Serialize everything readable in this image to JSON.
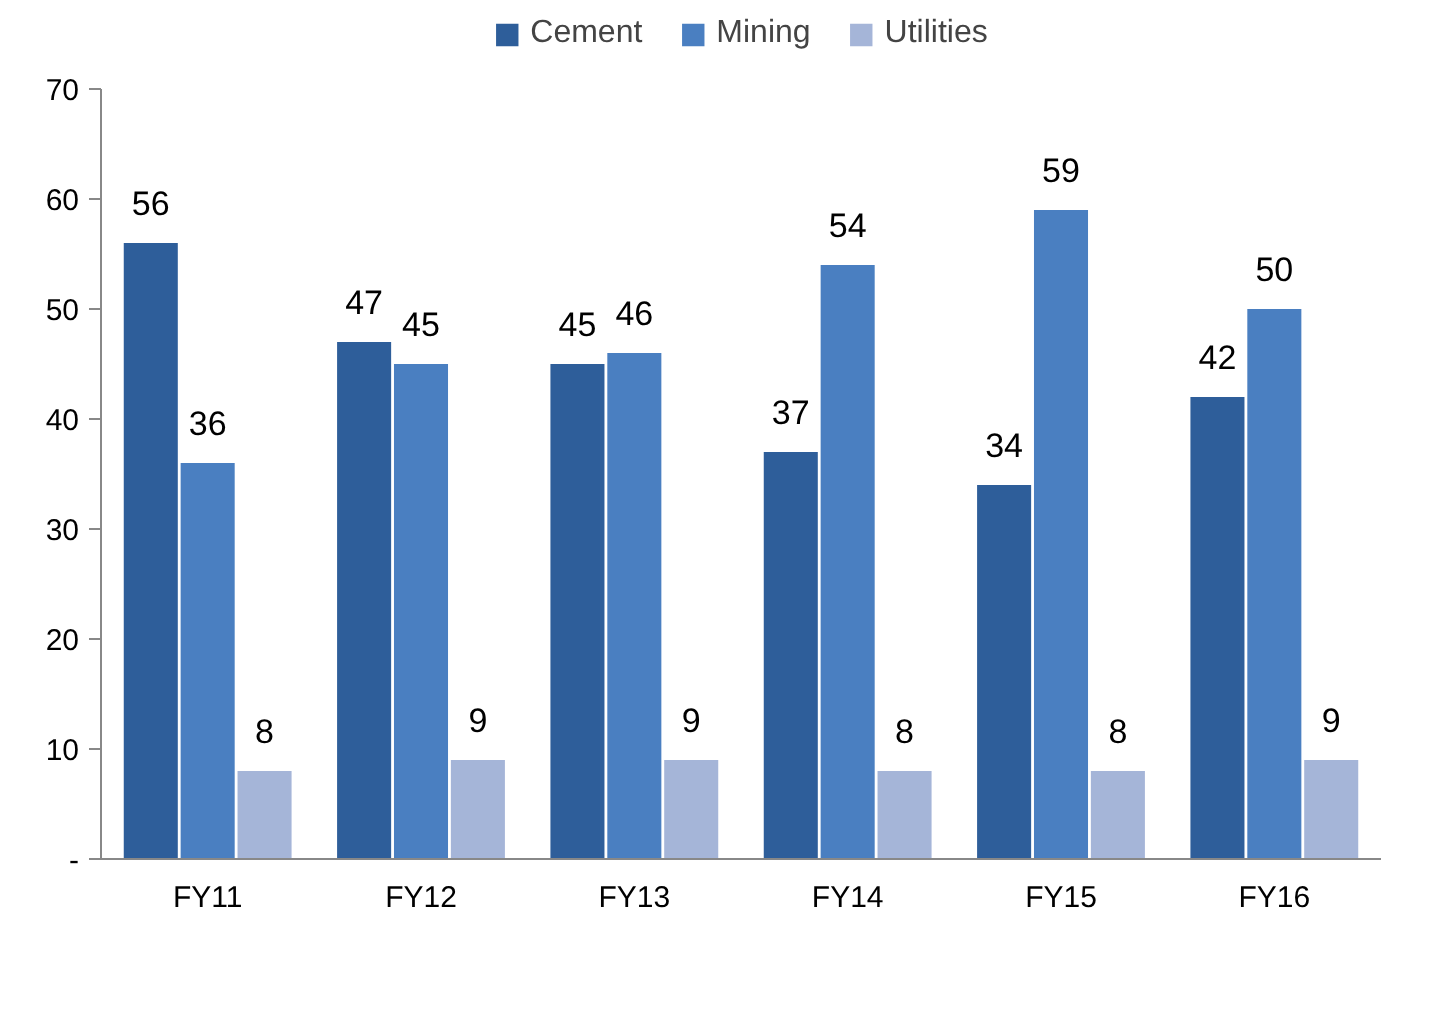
{
  "chart_data": {
    "type": "bar",
    "categories": [
      "FY11",
      "FY12",
      "FY13",
      "FY14",
      "FY15",
      "FY16"
    ],
    "series": [
      {
        "name": "Cement",
        "color": "#2e5e9a",
        "values": [
          56,
          47,
          45,
          37,
          34,
          42
        ]
      },
      {
        "name": "Mining",
        "color": "#4a7fc1",
        "values": [
          36,
          45,
          46,
          54,
          59,
          50
        ]
      },
      {
        "name": "Utilities",
        "color": "#a5b5d8",
        "values": [
          8,
          9,
          9,
          8,
          8,
          9
        ]
      }
    ],
    "ylim": [
      0,
      70
    ],
    "yticks": [
      {
        "value": 0,
        "label": "-"
      },
      10,
      20,
      30,
      40,
      50,
      60,
      70
    ],
    "data_labels": true,
    "legend": "top",
    "grid": false
  }
}
